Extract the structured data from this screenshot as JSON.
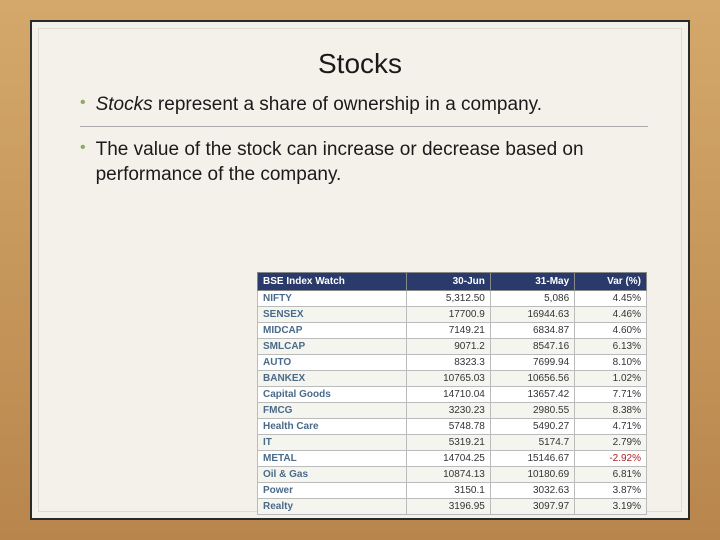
{
  "title": "Stocks",
  "bullets": [
    {
      "italic_prefix": "Stocks",
      "rest": " represent a share of ownership in a company."
    },
    {
      "italic_prefix": "",
      "rest": "The value of the stock can increase or decrease based on performance of the company."
    }
  ],
  "table": {
    "headers": [
      "BSE Index Watch",
      "30-Jun",
      "31-May",
      "Var (%)"
    ],
    "rows": [
      [
        "NIFTY",
        "5,312.50",
        "5,086",
        "4.45%",
        false
      ],
      [
        "SENSEX",
        "17700.9",
        "16944.63",
        "4.46%",
        false
      ],
      [
        "MIDCAP",
        "7149.21",
        "6834.87",
        "4.60%",
        false
      ],
      [
        "SMLCAP",
        "9071.2",
        "8547.16",
        "6.13%",
        false
      ],
      [
        "AUTO",
        "8323.3",
        "7699.94",
        "8.10%",
        false
      ],
      [
        "BANKEX",
        "10765.03",
        "10656.56",
        "1.02%",
        false
      ],
      [
        "Capital Goods",
        "14710.04",
        "13657.42",
        "7.71%",
        false
      ],
      [
        "FMCG",
        "3230.23",
        "2980.55",
        "8.38%",
        false
      ],
      [
        "Health Care",
        "5748.78",
        "5490.27",
        "4.71%",
        false
      ],
      [
        "IT",
        "5319.21",
        "5174.7",
        "2.79%",
        false
      ],
      [
        "METAL",
        "14704.25",
        "15146.67",
        "-2.92%",
        true
      ],
      [
        "Oil & Gas",
        "10874.13",
        "10180.69",
        "6.81%",
        false
      ],
      [
        "Power",
        "3150.1",
        "3032.63",
        "3.87%",
        false
      ],
      [
        "Realty",
        "3196.95",
        "3097.97",
        "3.19%",
        false
      ]
    ]
  },
  "colors": {
    "bullet": "#8fa863",
    "table_header_bg": "#2a3a6a",
    "neg": "#b02020"
  }
}
